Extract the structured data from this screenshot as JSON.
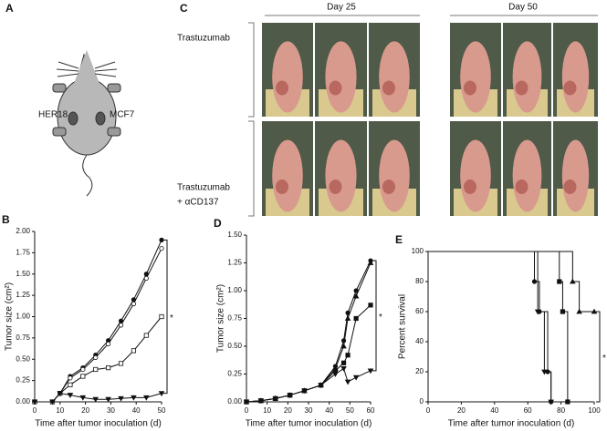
{
  "panel_labels": [
    "A",
    "C"
  ],
  "mouse": {
    "left": "HER18",
    "right": "MCF7"
  },
  "photos": {
    "columns": [
      "Day 25",
      "Day 50"
    ],
    "rows": [
      [
        "Trastuzumab"
      ],
      [
        "Trastuzumab",
        "+ αCD137"
      ]
    ]
  },
  "chart_data": [
    {
      "type": "line",
      "panel": "B",
      "ylabel": "Tumor size (cm²)",
      "xlabel": "Time after tumor inoculation (d)",
      "annotation": "*",
      "x": [
        0,
        7,
        10,
        14,
        19,
        24,
        29,
        34,
        39,
        44,
        50
      ],
      "xlim": [
        0,
        50
      ],
      "xticks": [
        0,
        10,
        20,
        30,
        40,
        50
      ],
      "ylim": [
        0,
        2
      ],
      "yticks": [
        {
          "value": 0,
          "label": "0.00"
        },
        {
          "value": 0.25,
          "label": "0.25"
        },
        {
          "value": 0.5,
          "label": "0.50"
        },
        {
          "value": 0.75,
          "label": "0.75"
        },
        {
          "value": 1,
          "label": "1.00"
        },
        {
          "value": 1.25,
          "label": "1.25"
        },
        {
          "value": 1.5,
          "label": "1.50"
        },
        {
          "value": 1.75,
          "label": "1.75"
        },
        {
          "value": 2,
          "label": "2.00"
        }
      ],
      "series": [
        {
          "marker": "circle",
          "fill": "#111111",
          "values": [
            0,
            0,
            0.1,
            0.3,
            0.4,
            0.55,
            0.72,
            0.95,
            1.2,
            1.5,
            1.9
          ]
        },
        {
          "marker": "circle",
          "fill": "#ffffff",
          "values": [
            0,
            0,
            0.1,
            0.28,
            0.38,
            0.52,
            0.68,
            0.9,
            1.15,
            1.45,
            1.8
          ]
        },
        {
          "marker": "square",
          "fill": "#ffffff",
          "values": [
            0,
            0,
            0.1,
            0.2,
            0.3,
            0.38,
            0.4,
            0.45,
            0.6,
            0.78,
            1.0
          ]
        },
        {
          "marker": "triangle-down",
          "fill": "#111111",
          "values": [
            0,
            0,
            0.1,
            0.08,
            0.05,
            0.03,
            0.03,
            0.04,
            0.05,
            0.05,
            0.1
          ]
        }
      ]
    },
    {
      "type": "line",
      "panel": "D",
      "ylabel": "Tumor size (cm²)",
      "xlabel": "Time after tumor inoculation (d)",
      "annotation": "*",
      "x": [
        0,
        7,
        14,
        21,
        28,
        36,
        43,
        47,
        49,
        53,
        60
      ],
      "xlim": [
        0,
        60
      ],
      "xticks": [
        0,
        10,
        20,
        30,
        40,
        50,
        60
      ],
      "ylim": [
        0,
        1.5
      ],
      "yticks": [
        {
          "value": 0,
          "label": "0.00"
        },
        {
          "value": 0.25,
          "label": "0.25"
        },
        {
          "value": 0.5,
          "label": "0.50"
        },
        {
          "value": 0.75,
          "label": "0.75"
        },
        {
          "value": 1,
          "label": "1.00"
        },
        {
          "value": 1.25,
          "label": "1.25"
        },
        {
          "value": 1.5,
          "label": "1.50"
        }
      ],
      "series": [
        {
          "marker": "circle",
          "fill": "#111111",
          "values": [
            0,
            0.01,
            0.03,
            0.06,
            0.1,
            0.15,
            0.32,
            0.55,
            0.8,
            1.0,
            1.27
          ]
        },
        {
          "marker": "triangle-up",
          "fill": "#111111",
          "values": [
            0,
            0.01,
            0.03,
            0.06,
            0.1,
            0.15,
            0.3,
            0.5,
            0.75,
            0.95,
            1.25
          ]
        },
        {
          "marker": "square",
          "fill": "#111111",
          "values": [
            0,
            0.01,
            0.03,
            0.06,
            0.1,
            0.15,
            0.28,
            0.35,
            0.42,
            0.75,
            0.87
          ]
        },
        {
          "marker": "triangle-down",
          "fill": "#111111",
          "values": [
            0,
            0.01,
            0.03,
            0.06,
            0.1,
            0.15,
            0.25,
            0.3,
            0.18,
            0.22,
            0.28
          ]
        }
      ]
    },
    {
      "type": "step",
      "panel": "E",
      "ylabel": "Percent survival",
      "xlabel": "Time after tumor inoculation (d)",
      "annotation": "*",
      "xlim": [
        0,
        100
      ],
      "xticks": [
        0,
        20,
        40,
        60,
        80,
        100
      ],
      "ylim": [
        0,
        100
      ],
      "yticks": [
        0,
        20,
        40,
        60,
        80,
        100
      ],
      "series": [
        {
          "marker": "circle",
          "fill": "#111111",
          "x": [
            0,
            64,
            67,
            72,
            74
          ],
          "values": [
            100,
            80,
            60,
            20,
            0
          ]
        },
        {
          "marker": "triangle-down",
          "fill": "#111111",
          "x": [
            0,
            66,
            70,
            74
          ],
          "values": [
            100,
            60,
            20,
            0
          ]
        },
        {
          "marker": "square",
          "fill": "#111111",
          "x": [
            0,
            79,
            81,
            84
          ],
          "values": [
            100,
            80,
            60,
            0
          ]
        },
        {
          "marker": "triangle-up",
          "fill": "#111111",
          "x": [
            0,
            87,
            91,
            100
          ],
          "values": [
            100,
            80,
            60,
            60
          ]
        }
      ]
    }
  ]
}
